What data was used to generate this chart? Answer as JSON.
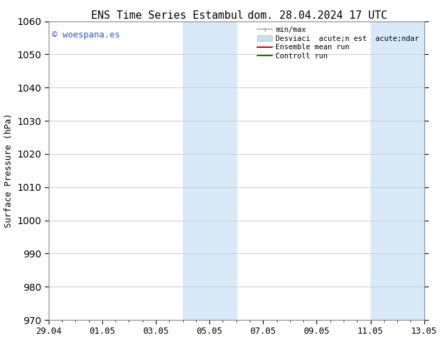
{
  "title_left": "ENS Time Series Estambul",
  "title_right": "dom. 28.04.2024 17 UTC",
  "ylabel": "Surface Pressure (hPa)",
  "ylim": [
    970,
    1060
  ],
  "yticks": [
    970,
    980,
    990,
    1000,
    1010,
    1020,
    1030,
    1040,
    1050,
    1060
  ],
  "xtick_labels": [
    "29.04",
    "01.05",
    "03.05",
    "05.05",
    "07.05",
    "09.05",
    "11.05",
    "13.05"
  ],
  "xtick_positions": [
    0,
    2,
    4,
    6,
    8,
    10,
    12,
    14
  ],
  "xlim": [
    0,
    14
  ],
  "bg_color": "#ffffff",
  "plot_bg_color": "#ffffff",
  "shaded_bands": [
    {
      "x_start": 5.0,
      "x_end": 7.0
    },
    {
      "x_start": 12.0,
      "x_end": 14.0
    }
  ],
  "shade_color": "#d8eaf8",
  "watermark_text": "© woespana.es",
  "watermark_color": "#3355cc",
  "legend_labels": [
    "min/max",
    "Desviaci  acute;n est  acute;ndar",
    "Ensemble mean run",
    "Controll run"
  ],
  "legend_colors": [
    "#aaaaaa",
    "#c8dff0",
    "#cc0000",
    "#008800"
  ],
  "grid_color": "#cccccc",
  "tick_color": "#000000",
  "title_fontsize": 11,
  "label_fontsize": 9,
  "tick_fontsize": 9,
  "watermark_fontsize": 9
}
